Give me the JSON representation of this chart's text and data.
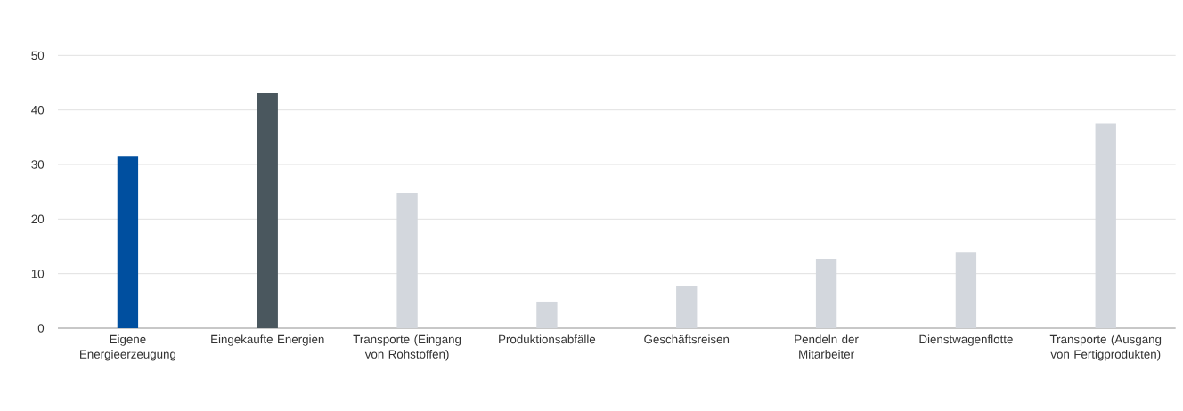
{
  "chart_data": {
    "type": "bar",
    "categories": [
      "Eigene Energieerzeugung",
      "Eingekaufte Energien",
      "Transporte (Eingang von Rohstoffen)",
      "Produktionsabfälle",
      "Geschäftsreisen",
      "Pendeln der Mitarbeiter",
      "Dienstwagenflotte",
      "Transporte (Ausgang von Fertigprodukten)"
    ],
    "values": [
      31.6,
      43.2,
      24.8,
      4.9,
      7.7,
      12.7,
      14.0,
      37.6
    ],
    "colors": [
      "#004f9f",
      "#4a575e",
      "#d3d7dd",
      "#d3d7dd",
      "#d3d7dd",
      "#d3d7dd",
      "#d3d7dd",
      "#d3d7dd"
    ],
    "ylim": [
      0,
      50
    ],
    "yticks": [
      0,
      10,
      20,
      30,
      40,
      50
    ],
    "grid": "y"
  }
}
